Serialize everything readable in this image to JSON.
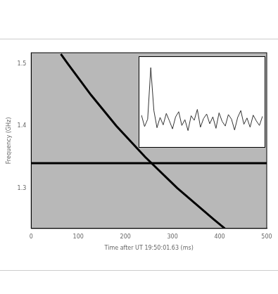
{
  "chart_data": [
    {
      "type": "line",
      "x_label": "Time after UT 19:50:01.63 (ms)",
      "y_label": "Frequency (GHz)",
      "xlim": [
        0,
        500
      ],
      "xticks": [
        0,
        100,
        200,
        300,
        400,
        500
      ],
      "ylim": [
        1.235,
        1.518
      ],
      "yticks": [
        1.3,
        1.4,
        1.5
      ],
      "grid": false,
      "series": [
        {
          "color": "#000000",
          "line_style": "solid",
          "x": [
            63,
            78,
            127,
            181,
            242,
            310,
            387,
            411
          ],
          "values": [
            1.516,
            1.5,
            1.45,
            1.4,
            1.35,
            1.3,
            1.25,
            1.235
          ]
        },
        {
          "color": "#000000",
          "line_style": "solid",
          "x": [
            0,
            500
          ],
          "values": [
            1.34,
            1.34
          ]
        }
      ]
    },
    {
      "type": "line",
      "tick_labels": false,
      "grid": false,
      "color": "#333333",
      "values": [
        1.2,
        -0.8,
        0.5,
        9.5,
        2.0,
        -1.0,
        0.8,
        -0.5,
        1.5,
        0.2,
        -1.2,
        0.9,
        1.8,
        -0.6,
        0.4,
        -1.5,
        1.1,
        0.3,
        2.2,
        -0.9,
        0.6,
        1.4,
        -0.3,
        0.9,
        -1.1,
        1.6,
        0.1,
        -0.7,
        1.3,
        0.5,
        -1.4,
        0.8,
        2.0,
        -0.4,
        0.7,
        -0.9,
        1.2,
        0.2,
        -0.6,
        1.0
      ],
      "ylim": [
        -4,
        11
      ]
    }
  ]
}
